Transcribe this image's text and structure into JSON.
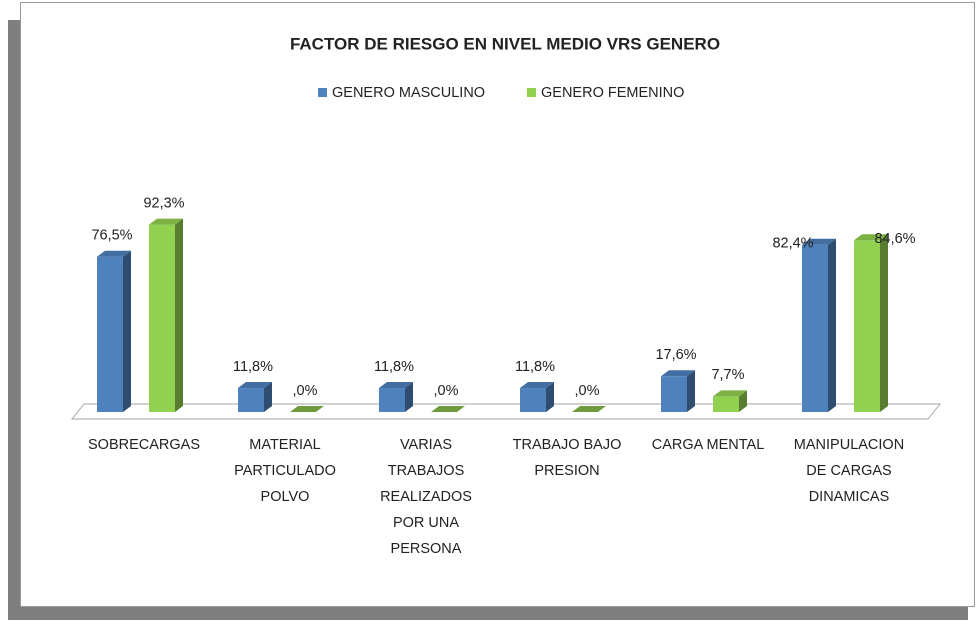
{
  "chart_data": {
    "type": "bar3d",
    "title": "FACTOR DE RIESGO EN NIVEL MEDIO VRS  GENERO",
    "categories": [
      "SOBRECARGAS",
      "MATERIAL PARTICULADO POLVO",
      "VARIAS TRABAJOS REALIZADOS POR UNA PERSONA",
      "TRABAJO BAJO PRESION",
      "CARGA MENTAL",
      "MANIPULACION DE CARGAS DINAMICAS"
    ],
    "series": [
      {
        "name": "GENERO MASCULINO",
        "color": "#4f81bd",
        "values": [
          76.5,
          11.8,
          11.8,
          11.8,
          17.6,
          82.4
        ],
        "value_labels": [
          "76,5%",
          "11,8%",
          "11,8%",
          "11,8%",
          "17,6%",
          "82,4%"
        ]
      },
      {
        "name": "GENERO FEMENINO",
        "color": "#92d050",
        "values": [
          92.3,
          0,
          0,
          0,
          7.7,
          84.6
        ],
        "value_labels": [
          "92,3%",
          ",0%",
          ",0%",
          ",0%",
          "7,7%",
          "84,6%"
        ]
      }
    ],
    "legend": "top"
  }
}
